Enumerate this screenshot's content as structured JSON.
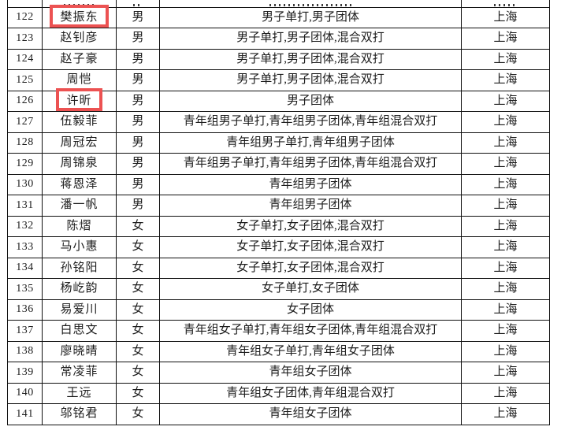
{
  "page": {
    "background_color": "#ffffff",
    "description": "entry roster table, players 122-141"
  },
  "table": {
    "border_color": "#101010",
    "text_color": "#1c1c1c",
    "highlight_color": "#ec5252",
    "columns": [
      "number",
      "name",
      "gender",
      "events",
      "region"
    ],
    "rows": [
      {
        "number": "122",
        "name": "樊振东",
        "gender": "男",
        "events": "男子单打,男子团体",
        "region": "上海",
        "highlight": true
      },
      {
        "number": "123",
        "name": "赵钊彦",
        "gender": "男",
        "events": "男子单打,男子团体,混合双打",
        "region": "上海",
        "highlight": false
      },
      {
        "number": "124",
        "name": "赵子豪",
        "gender": "男",
        "events": "男子单打,男子团体,混合双打",
        "region": "上海",
        "highlight": false
      },
      {
        "number": "125",
        "name": "周恺",
        "gender": "男",
        "events": "男子单打,男子团体,混合双打",
        "region": "上海",
        "highlight": false
      },
      {
        "number": "126",
        "name": "许昕",
        "gender": "男",
        "events": "男子团体",
        "region": "上海",
        "highlight": true
      },
      {
        "number": "127",
        "name": "伍毅菲",
        "gender": "男",
        "events": "青年组男子单打,青年组男子团体,青年组混合双打",
        "region": "上海",
        "highlight": false
      },
      {
        "number": "128",
        "name": "周冠宏",
        "gender": "男",
        "events": "青年组男子单打,青年组男子团体",
        "region": "上海",
        "highlight": false
      },
      {
        "number": "129",
        "name": "周锦泉",
        "gender": "男",
        "events": "青年组男子单打,青年组男子团体,青年组混合双打",
        "region": "上海",
        "highlight": false
      },
      {
        "number": "130",
        "name": "蒋恩泽",
        "gender": "男",
        "events": "青年组男子团体",
        "region": "上海",
        "highlight": false
      },
      {
        "number": "131",
        "name": "潘一帆",
        "gender": "男",
        "events": "青年组男子团体",
        "region": "上海",
        "highlight": false
      },
      {
        "number": "132",
        "name": "陈熠",
        "gender": "女",
        "events": "女子单打,女子团体,混合双打",
        "region": "上海",
        "highlight": false
      },
      {
        "number": "133",
        "name": "马小惠",
        "gender": "女",
        "events": "女子单打,女子团体,混合双打",
        "region": "上海",
        "highlight": false
      },
      {
        "number": "134",
        "name": "孙铭阳",
        "gender": "女",
        "events": "女子单打,女子团体,混合双打",
        "region": "上海",
        "highlight": false
      },
      {
        "number": "135",
        "name": "杨屹韵",
        "gender": "女",
        "events": "女子单打,女子团体",
        "region": "上海",
        "highlight": false
      },
      {
        "number": "136",
        "name": "易爱川",
        "gender": "女",
        "events": "女子团体",
        "region": "上海",
        "highlight": false
      },
      {
        "number": "137",
        "name": "白思文",
        "gender": "女",
        "events": "青年组女子单打,青年组女子团体,青年组混合双打",
        "region": "上海",
        "highlight": false
      },
      {
        "number": "138",
        "name": "廖晓晴",
        "gender": "女",
        "events": "青年组女子单打,青年组女子团体",
        "region": "上海",
        "highlight": false
      },
      {
        "number": "139",
        "name": "常凌菲",
        "gender": "女",
        "events": "青年组女子团体",
        "region": "上海",
        "highlight": false
      },
      {
        "number": "140",
        "name": "王远",
        "gender": "女",
        "events": "青年组女子团体,青年组混合双打",
        "region": "上海",
        "highlight": false
      },
      {
        "number": "141",
        "name": "邬铭君",
        "gender": "女",
        "events": "青年组女子团体",
        "region": "上海",
        "highlight": false
      }
    ]
  }
}
